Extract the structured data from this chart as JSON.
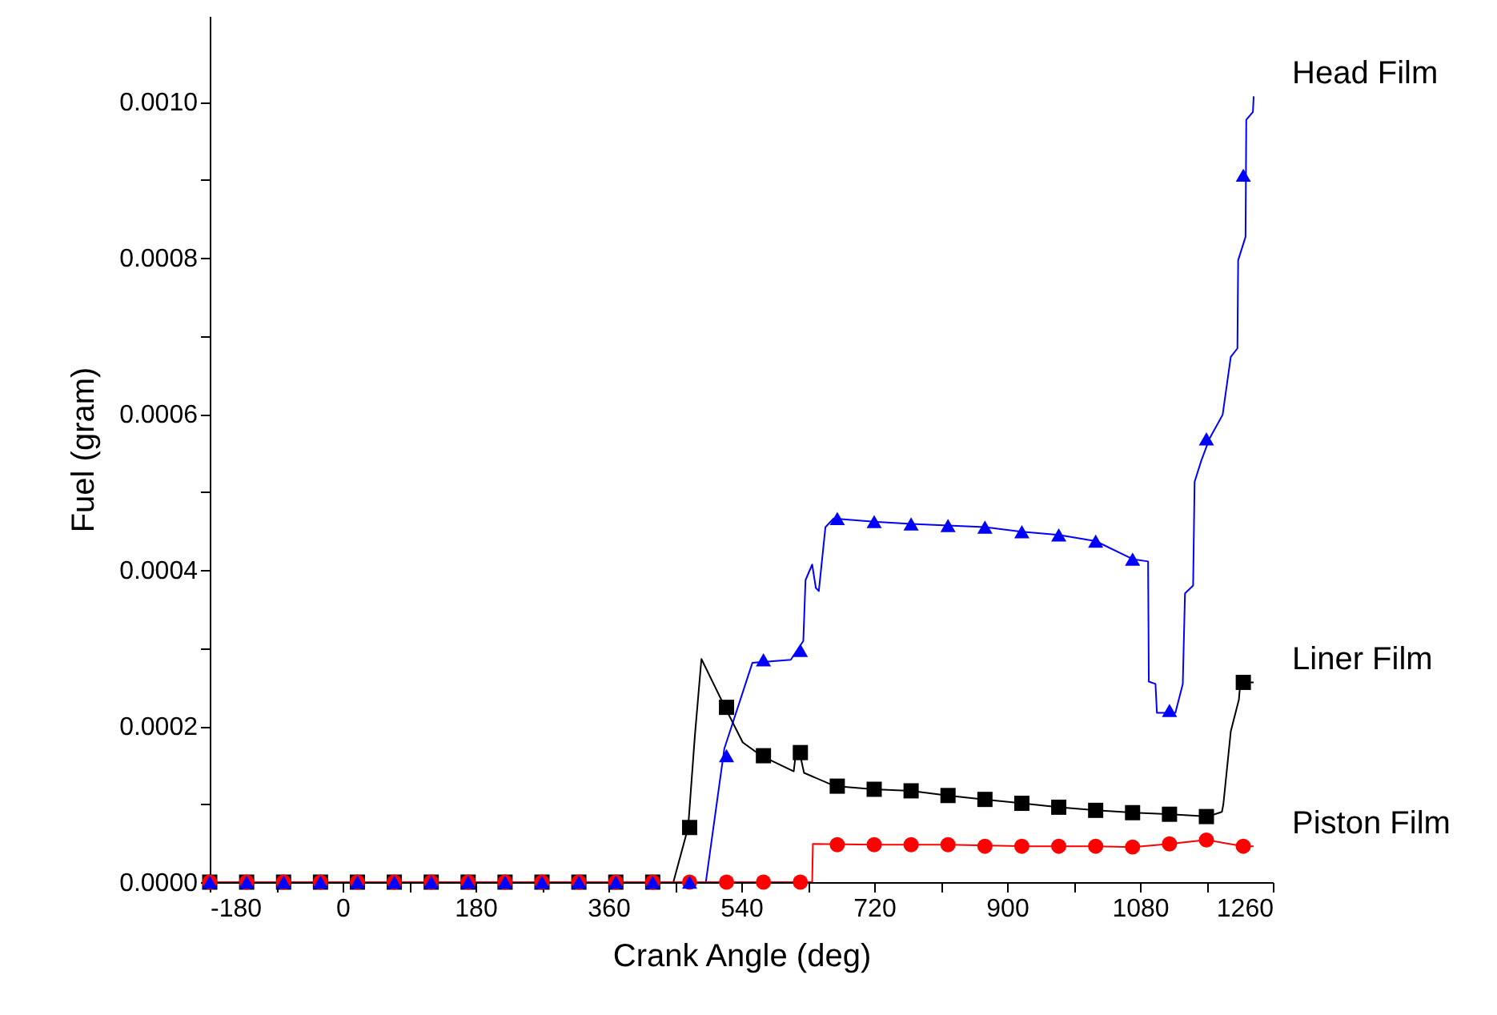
{
  "chart_data": {
    "type": "line",
    "xlabel": "Crank Angle (deg)",
    "ylabel": "Fuel (gram)",
    "xlim": [
      -180,
      1260
    ],
    "xticks": [
      -180,
      {
        "value": -90,
        "label": null
      },
      0,
      {
        "value": 90,
        "label": null
      },
      180,
      {
        "value": 270,
        "label": null
      },
      360,
      {
        "value": 450,
        "label": null
      },
      540,
      {
        "value": 630,
        "label": null
      },
      720,
      {
        "value": 810,
        "label": null
      },
      900,
      {
        "value": 990,
        "label": null
      },
      1080,
      {
        "value": 1170,
        "label": null
      },
      1260
    ],
    "ylim": [
      0,
      0.00111
    ],
    "yticks": [
      {
        "value": 0,
        "label": "0.0000"
      },
      {
        "value": 0.0001,
        "label": null
      },
      {
        "value": 0.0002,
        "label": "0.0002"
      },
      {
        "value": 0.0003,
        "label": null
      },
      {
        "value": 0.0004,
        "label": "0.0004"
      },
      {
        "value": 0.0005,
        "label": null
      },
      {
        "value": 0.0006,
        "label": "0.0006"
      },
      {
        "value": 0.0007,
        "label": null
      },
      {
        "value": 0.0008,
        "label": "0.0008"
      },
      {
        "value": 0.0009,
        "label": null
      },
      {
        "value": 0.001,
        "label": "0.0010"
      }
    ],
    "grid": false,
    "legend": false,
    "line_style": "solid",
    "series": [
      {
        "name": "Head Film",
        "color": "#0000ff",
        "marker": "none",
        "x": [
          -180,
          492,
          517,
          555,
          607,
          624,
          627,
          636,
          641,
          645,
          654,
          665,
          720,
          770,
          820,
          870,
          920,
          970,
          1020,
          1070,
          1091,
          1092,
          1101,
          1103,
          1128,
          1138,
          1141,
          1152,
          1154,
          1163,
          1174,
          1192,
          1203,
          1212,
          1213,
          1223,
          1224,
          1233,
          1234
        ],
        "values": [
          0,
          0,
          0.000171,
          0.000281,
          0.000285,
          0.000309,
          0.000387,
          0.000407,
          0.000377,
          0.000373,
          0.000455,
          0.000466,
          0.000462,
          0.000459,
          0.000457,
          0.000455,
          0.000449,
          0.000445,
          0.000437,
          0.000414,
          0.000411,
          0.000257,
          0.000254,
          0.000217,
          0.000217,
          0.000254,
          0.00037,
          0.00038,
          0.000513,
          0.00054,
          0.000568,
          0.000599,
          0.000673,
          0.000684,
          0.000797,
          0.000827,
          0.000977,
          0.000987,
          0.001007
        ]
      },
      {
        "name": "Liner Film",
        "color": "#000000",
        "marker": "none",
        "x": [
          -180,
          448,
          468,
          477,
          486,
          518,
          542,
          567,
          611,
          614,
          619,
          625,
          667,
          719,
          770,
          819,
          869,
          920,
          971,
          1021,
          1072,
          1122,
          1172,
          1191,
          1193,
          1203,
          1214,
          1216,
          1234
        ],
        "values": [
          0,
          0,
          7e-05,
          0.000186,
          0.000286,
          0.000224,
          0.000179,
          0.000162,
          0.000142,
          0.000166,
          0.000166,
          0.00014,
          0.000123,
          0.000119,
          0.000117,
          0.000111,
          0.000106,
          0.000101,
          9.6e-05,
          9.2e-05,
          8.9e-05,
          8.7e-05,
          8.4e-05,
          9e-05,
          0.0001,
          0.000193,
          0.000234,
          0.000256,
          0.000256
        ]
      },
      {
        "name": "Piston Film",
        "color": "#ff0000",
        "marker": "none",
        "x": [
          -180,
          636,
          637,
          720,
          820,
          920,
          1020,
          1070,
          1120,
          1170,
          1220,
          1234
        ],
        "values": [
          0,
          0,
          4.9e-05,
          4.8e-05,
          4.8e-05,
          4.6e-05,
          4.6e-05,
          4.5e-05,
          4.9e-05,
          5.4e-05,
          4.6e-05,
          4.6e-05
        ]
      },
      {
        "type": "scatter",
        "color": "#000000",
        "marker": "square",
        "x": [
          -180,
          -130,
          -80,
          -30,
          20,
          70,
          120,
          170,
          220,
          270,
          320,
          370,
          420,
          470,
          520,
          570,
          620,
          670,
          720,
          770,
          820,
          870,
          920,
          970,
          1020,
          1070,
          1120,
          1170,
          1220
        ],
        "values": [
          0,
          0,
          0,
          0,
          0,
          0,
          0,
          0,
          0,
          0,
          0,
          0,
          0,
          7e-05,
          0.000224,
          0.000162,
          0.000166,
          0.000123,
          0.000119,
          0.000117,
          0.000111,
          0.000106,
          0.000101,
          9.6e-05,
          9.2e-05,
          8.9e-05,
          8.7e-05,
          8.4e-05,
          0.000256
        ]
      },
      {
        "type": "scatter",
        "color": "#ff0000",
        "marker": "circle",
        "x": [
          -180,
          -130,
          -80,
          -30,
          20,
          70,
          120,
          170,
          220,
          270,
          320,
          370,
          420,
          470,
          520,
          570,
          620,
          670,
          720,
          770,
          820,
          870,
          920,
          970,
          1020,
          1070,
          1120,
          1170,
          1220
        ],
        "values": [
          0,
          0,
          0,
          0,
          0,
          0,
          0,
          0,
          0,
          0,
          0,
          0,
          0,
          0,
          0,
          0,
          0,
          4.8e-05,
          4.8e-05,
          4.8e-05,
          4.8e-05,
          4.6e-05,
          4.6e-05,
          4.6e-05,
          4.6e-05,
          4.5e-05,
          4.9e-05,
          5.4e-05,
          4.6e-05
        ]
      },
      {
        "type": "scatter",
        "color": "#0000ff",
        "marker": "triangle",
        "x": [
          -180,
          -130,
          -80,
          -30,
          20,
          70,
          120,
          170,
          220,
          270,
          320,
          370,
          420,
          470,
          520,
          570,
          620,
          670,
          720,
          770,
          820,
          870,
          920,
          970,
          1020,
          1070,
          1120,
          1170,
          1220
        ],
        "values": [
          0,
          0,
          0,
          0,
          0,
          0,
          0,
          0,
          0,
          0,
          0,
          0,
          0,
          0,
          0.000162,
          0.000285,
          0.000297,
          0.000466,
          0.000462,
          0.000459,
          0.000457,
          0.000455,
          0.000449,
          0.000445,
          0.000437,
          0.000414,
          0.00022,
          0.000568,
          0.000906
        ]
      }
    ]
  }
}
